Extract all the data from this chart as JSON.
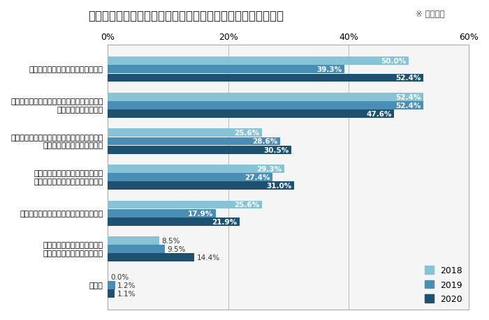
{
  "title_main": "【図】過去調査との比較　分析に取り組む上で課題となる要因",
  "title_sub": "※ 複数回答",
  "categories": [
    "社内のリソース（人手）が足りない",
    "オフライン領域のデータや、外部のデータを\n収集することが難しい",
    "オフライン領域のデータや、外部のデータが\n信頼できるデータか疑わしい",
    "分析に関する知見が足りていない\n（分析できる人間がいない、等）",
    "データを一元的に管理する仕組みが無い",
    "分析を実施する意義について\n社内の理解が得られていない",
    "その他"
  ],
  "values_2018": [
    50.0,
    52.4,
    25.6,
    29.3,
    25.6,
    8.5,
    0.0
  ],
  "values_2019": [
    39.3,
    52.4,
    28.6,
    27.4,
    17.9,
    9.5,
    1.2
  ],
  "values_2020": [
    52.4,
    47.6,
    30.5,
    31.0,
    21.9,
    14.4,
    1.1
  ],
  "color_2018": "#87c3d5",
  "color_2019": "#4a8db5",
  "color_2020": "#1e5070",
  "xlim": [
    0,
    60
  ],
  "xticks": [
    0,
    20,
    40,
    60
  ],
  "xticklabels": [
    "0%",
    "20%",
    "40%",
    "60%"
  ],
  "bar_height": 0.23,
  "bar_gap": 0.005,
  "background_color": "#ffffff",
  "plot_bg": "#f5f5f5",
  "title_fontsize": 12,
  "label_fontsize": 8,
  "tick_fontsize": 9,
  "value_fontsize": 7.5,
  "inside_threshold": 15
}
